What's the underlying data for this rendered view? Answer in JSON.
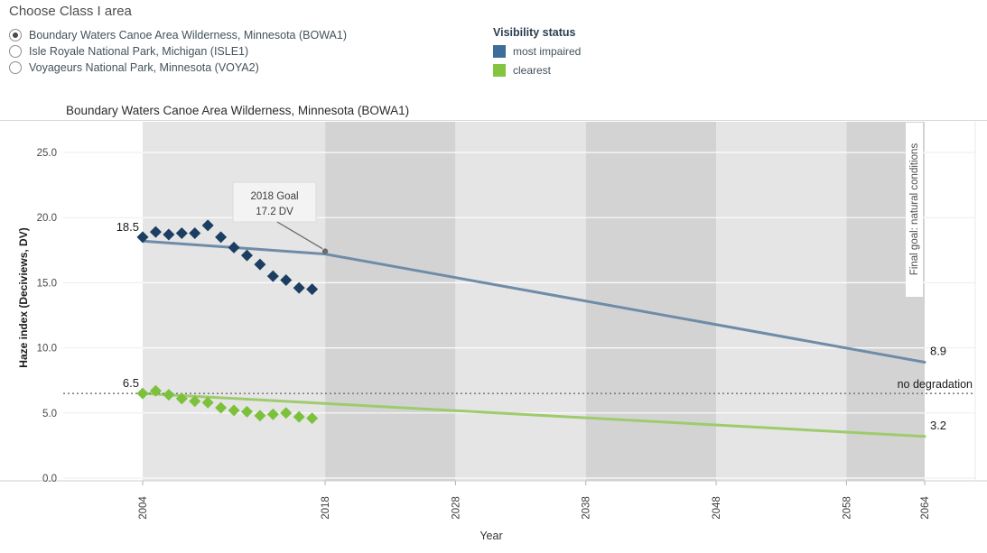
{
  "controls": {
    "title": "Choose Class I area",
    "options": [
      {
        "label": "Boundary Waters Canoe Area Wilderness, Minnesota (BOWA1)",
        "selected": true
      },
      {
        "label": "Isle Royale National Park, Michigan (ISLE1)",
        "selected": false
      },
      {
        "label": "Voyageurs National Park, Minnesota (VOYA2)",
        "selected": false
      }
    ]
  },
  "legend": {
    "title": "Visibility status",
    "items": [
      {
        "label": "most impaired",
        "color": "#3d6d99"
      },
      {
        "label": "clearest",
        "color": "#85c441"
      }
    ]
  },
  "chart_data": {
    "type": "scatter",
    "title": "Boundary Waters Canoe Area Wilderness, Minnesota (BOWA1)",
    "xlabel": "Year",
    "ylabel": "Haze index (Deciviews, DV)",
    "xlim": [
      1999,
      2068
    ],
    "ylim": [
      0,
      27.5
    ],
    "x_ticks": [
      2004,
      2018,
      2028,
      2038,
      2048,
      2058,
      2064
    ],
    "y_ticks": [
      {
        "value": 0,
        "label": "0.0"
      },
      {
        "value": 5,
        "label": "5.0"
      },
      {
        "value": 10,
        "label": "10.0"
      },
      {
        "value": 15,
        "label": "15.0"
      },
      {
        "value": 20,
        "label": "20.0"
      },
      {
        "value": 25,
        "label": "25.0"
      }
    ],
    "grid": "horizontal gridlines; alternating shaded decade bands",
    "legend_position": "top outside",
    "bands": {
      "light": "#e5e5e5",
      "dark": "#d3d3d3",
      "ranges": [
        [
          2004,
          2018,
          "light"
        ],
        [
          2018,
          2028,
          "dark"
        ],
        [
          2028,
          2038,
          "light"
        ],
        [
          2038,
          2048,
          "dark"
        ],
        [
          2048,
          2058,
          "light"
        ],
        [
          2058,
          2064,
          "dark"
        ]
      ]
    },
    "series": [
      {
        "name": "most impaired",
        "role": "observed",
        "style": "diamond",
        "color": "#1c3e63",
        "x": [
          2004,
          2005,
          2006,
          2007,
          2008,
          2009,
          2010,
          2011,
          2012,
          2013,
          2014,
          2015,
          2016,
          2017
        ],
        "values": [
          18.5,
          18.9,
          18.7,
          18.8,
          18.8,
          19.4,
          18.5,
          17.7,
          17.1,
          16.4,
          15.5,
          15.2,
          14.6,
          14.5
        ],
        "start_label": "18.5"
      },
      {
        "name": "most impaired",
        "role": "glide path",
        "style": "line",
        "color": "#6e8ca8",
        "x": [
          2004,
          2018,
          2064
        ],
        "values": [
          18.2,
          17.2,
          8.9
        ],
        "end_label": "8.9"
      },
      {
        "name": "clearest",
        "role": "observed",
        "style": "diamond",
        "color": "#7cc13b",
        "x": [
          2004,
          2005,
          2006,
          2007,
          2008,
          2009,
          2010,
          2011,
          2012,
          2013,
          2014,
          2015,
          2016,
          2017
        ],
        "values": [
          6.5,
          6.7,
          6.4,
          6.1,
          5.9,
          5.8,
          5.4,
          5.2,
          5.1,
          4.8,
          4.9,
          5.0,
          4.7,
          4.6
        ],
        "start_label": "6.5"
      },
      {
        "name": "clearest",
        "role": "glide path",
        "style": "line",
        "color": "#9ecb6d",
        "x": [
          2004,
          2064
        ],
        "values": [
          6.5,
          3.2
        ],
        "end_label": "3.2"
      }
    ],
    "reference_line": {
      "value": 6.5,
      "label": "no degradation",
      "color": "#7f7f7f"
    },
    "annotation": {
      "line1": "2018 Goal",
      "line2": "17.2 DV",
      "target_year": 2018,
      "target_value": 17.2
    },
    "right_axis_label": "Final goal: natural conditions"
  }
}
